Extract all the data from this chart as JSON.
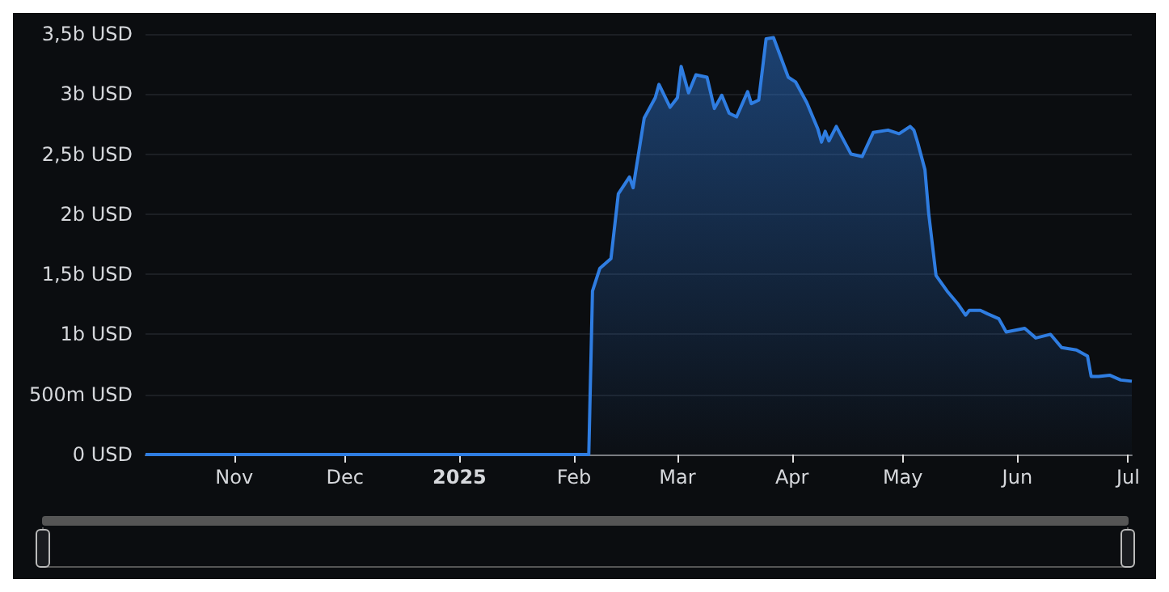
{
  "chart_data": {
    "type": "area",
    "x": [
      "2024-10-08",
      "2025-02-05",
      "2025-02-06",
      "2025-02-08",
      "2025-02-11",
      "2025-02-13",
      "2025-02-16",
      "2025-02-17",
      "2025-02-20",
      "2025-02-23",
      "2025-02-24",
      "2025-02-27",
      "2025-03-01",
      "2025-03-02",
      "2025-03-04",
      "2025-03-06",
      "2025-03-09",
      "2025-03-11",
      "2025-03-13",
      "2025-03-15",
      "2025-03-17",
      "2025-03-18",
      "2025-03-20",
      "2025-03-21",
      "2025-03-23",
      "2025-03-25",
      "2025-03-27",
      "2025-03-31",
      "2025-04-02",
      "2025-04-05",
      "2025-04-08",
      "2025-04-09",
      "2025-04-10",
      "2025-04-11",
      "2025-04-13",
      "2025-04-17",
      "2025-04-20",
      "2025-04-23",
      "2025-04-27",
      "2025-04-30",
      "2025-05-03",
      "2025-05-04",
      "2025-05-05",
      "2025-05-07",
      "2025-05-08",
      "2025-05-10",
      "2025-05-13",
      "2025-05-16",
      "2025-05-18",
      "2025-05-19",
      "2025-05-22",
      "2025-05-24",
      "2025-05-27",
      "2025-05-29",
      "2025-06-03",
      "2025-06-06",
      "2025-06-10",
      "2025-06-13",
      "2025-06-17",
      "2025-06-20",
      "2025-06-21",
      "2025-06-23",
      "2025-06-26",
      "2025-06-29",
      "2025-07-02"
    ],
    "series": [
      {
        "color": "#2f7de1",
        "values": [
          0,
          0,
          1360000000,
          1550000000,
          1630000000,
          2170000000,
          2310000000,
          2220000000,
          2800000000,
          2970000000,
          3080000000,
          2890000000,
          2970000000,
          3230000000,
          3010000000,
          3160000000,
          3140000000,
          2880000000,
          2990000000,
          2840000000,
          2810000000,
          2880000000,
          3020000000,
          2920000000,
          2950000000,
          3460000000,
          3470000000,
          3140000000,
          3100000000,
          2930000000,
          2710000000,
          2600000000,
          2690000000,
          2610000000,
          2730000000,
          2500000000,
          2480000000,
          2680000000,
          2700000000,
          2670000000,
          2730000000,
          2700000000,
          2600000000,
          2370000000,
          2010000000,
          1490000000,
          1360000000,
          1250000000,
          1160000000,
          1200000000,
          1200000000,
          1170000000,
          1130000000,
          1020000000,
          1050000000,
          970000000,
          1000000000,
          890000000,
          870000000,
          820000000,
          650000000,
          650000000,
          660000000,
          620000000,
          610000000
        ]
      }
    ],
    "xlim": [
      "2024-10-08",
      "2025-07-02"
    ],
    "xticks": [
      {
        "value": "2024-11-01",
        "label": "Nov"
      },
      {
        "value": "2024-12-01",
        "label": "Dec"
      },
      {
        "value": "2025-01-01",
        "label": "2025"
      },
      {
        "value": "2025-02-01",
        "label": "Feb"
      },
      {
        "value": "2025-03-01",
        "label": "Mar"
      },
      {
        "value": "2025-04-01",
        "label": "Apr"
      },
      {
        "value": "2025-05-01",
        "label": "May"
      },
      {
        "value": "2025-06-01",
        "label": "Jun"
      },
      {
        "value": "2025-07-01",
        "label": "Jul"
      }
    ],
    "ylim": [
      0,
      3500000000
    ],
    "yticks": [
      {
        "value": 0,
        "label": "0 USD"
      },
      {
        "value": 500000000,
        "label": "500m USD"
      },
      {
        "value": 1000000000,
        "label": "1b USD"
      },
      {
        "value": 1500000000,
        "label": "1,5b USD"
      },
      {
        "value": 2000000000,
        "label": "2b USD"
      },
      {
        "value": 2500000000,
        "label": "2,5b USD"
      },
      {
        "value": 3000000000,
        "label": "3b USD"
      },
      {
        "value": 3500000000,
        "label": "3,5b USD"
      }
    ],
    "grid": "y"
  }
}
